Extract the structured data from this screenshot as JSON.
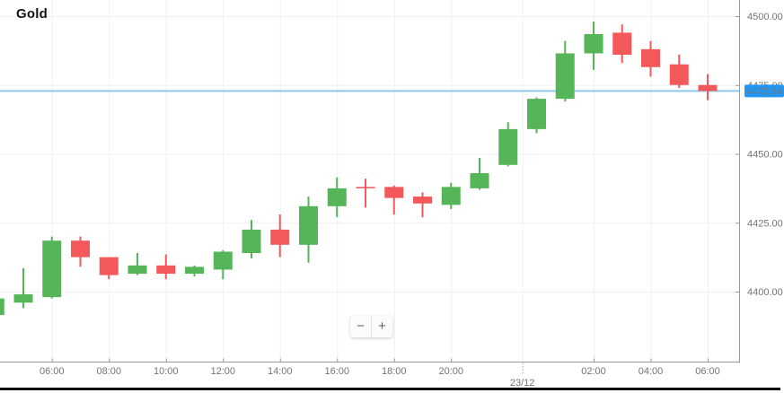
{
  "title": "Gold",
  "controls": {
    "zoom_out": "−",
    "zoom_in": "+"
  },
  "colors": {
    "up": "#55b558",
    "down": "#f3585a",
    "wick_up": "#55b558",
    "wick_down": "#f3585a",
    "price_line": "#8fc7ef",
    "price_badge": "#2196f3",
    "grid": "#f0f0f1",
    "axis": "#999999",
    "label": "#757575"
  },
  "chart_data": {
    "type": "candlestick",
    "title": "Gold",
    "current_price": 4472.84,
    "current_price_label": "4472.84",
    "legend_position": "none",
    "grid": true,
    "y_ticks": [
      4400,
      4425,
      4450,
      4475,
      4500
    ],
    "y_tick_labels": [
      "4400.00",
      "4425.00",
      "4450.00",
      "4475.00",
      "4500.00"
    ],
    "x_axis": {
      "ticks": [
        {
          "label": "06:00",
          "index": 2
        },
        {
          "label": "08:00",
          "index": 4
        },
        {
          "label": "10:00",
          "index": 6
        },
        {
          "label": "12:00",
          "index": 8
        },
        {
          "label": "14:00",
          "index": 10
        },
        {
          "label": "16:00",
          "index": 12
        },
        {
          "label": "18:00",
          "index": 14
        },
        {
          "label": "20:00",
          "index": 16
        },
        {
          "label": "23/12",
          "between": [
            18,
            19
          ],
          "date": true
        },
        {
          "label": "02:00",
          "index": 21
        },
        {
          "label": "04:00",
          "index": 23
        },
        {
          "label": "06:00",
          "index": 25
        }
      ]
    },
    "candles": [
      {
        "time": "04:00",
        "open": 4391.5,
        "high": 4397.5,
        "low": 4391.5,
        "close": 4397.5
      },
      {
        "time": "05:00",
        "open": 4396.0,
        "high": 4408.5,
        "low": 4394.0,
        "close": 4399.0
      },
      {
        "time": "06:00",
        "open": 4398.0,
        "high": 4420.0,
        "low": 4397.5,
        "close": 4418.5
      },
      {
        "time": "07:00",
        "open": 4418.5,
        "high": 4420.0,
        "low": 4409.0,
        "close": 4412.5
      },
      {
        "time": "08:00",
        "open": 4412.5,
        "high": 4412.5,
        "low": 4404.5,
        "close": 4406.0
      },
      {
        "time": "09:00",
        "open": 4406.5,
        "high": 4414.0,
        "low": 4406.0,
        "close": 4409.5
      },
      {
        "time": "10:00",
        "open": 4409.5,
        "high": 4413.5,
        "low": 4404.5,
        "close": 4406.5
      },
      {
        "time": "11:00",
        "open": 4406.5,
        "high": 4409.5,
        "low": 4405.5,
        "close": 4409.0
      },
      {
        "time": "12:00",
        "open": 4408.0,
        "high": 4415.0,
        "low": 4404.5,
        "close": 4414.5
      },
      {
        "time": "13:00",
        "open": 4414.0,
        "high": 4426.0,
        "low": 4412.0,
        "close": 4422.5
      },
      {
        "time": "14:00",
        "open": 4422.5,
        "high": 4428.0,
        "low": 4412.5,
        "close": 4417.0
      },
      {
        "time": "15:00",
        "open": 4417.0,
        "high": 4434.5,
        "low": 4410.5,
        "close": 4431.0
      },
      {
        "time": "16:00",
        "open": 4431.0,
        "high": 4441.5,
        "low": 4427.0,
        "close": 4437.5
      },
      {
        "time": "17:00",
        "open": 4438.0,
        "high": 4441.0,
        "low": 4430.5,
        "close": 4437.5
      },
      {
        "time": "18:00",
        "open": 4438.0,
        "high": 4438.5,
        "low": 4428.0,
        "close": 4434.0
      },
      {
        "time": "19:00",
        "open": 4434.5,
        "high": 4436.0,
        "low": 4427.0,
        "close": 4432.0
      },
      {
        "time": "20:00",
        "open": 4431.5,
        "high": 4439.5,
        "low": 4430.0,
        "close": 4438.0
      },
      {
        "time": "21:00",
        "open": 4437.5,
        "high": 4448.5,
        "low": 4437.0,
        "close": 4443.0
      },
      {
        "time": "22:00",
        "open": 4446.0,
        "high": 4461.5,
        "low": 4445.5,
        "close": 4459.0
      },
      {
        "time": "00:00",
        "open": 4459.0,
        "high": 4470.5,
        "low": 4457.5,
        "close": 4470.0
      },
      {
        "time": "01:00",
        "open": 4470.0,
        "high": 4491.0,
        "low": 4469.0,
        "close": 4486.5
      },
      {
        "time": "02:00",
        "open": 4486.5,
        "high": 4498.0,
        "low": 4480.5,
        "close": 4493.5
      },
      {
        "time": "03:00",
        "open": 4494.0,
        "high": 4497.0,
        "low": 4483.0,
        "close": 4486.0
      },
      {
        "time": "04:00",
        "open": 4488.0,
        "high": 4491.0,
        "low": 4478.0,
        "close": 4481.5
      },
      {
        "time": "05:00",
        "open": 4482.5,
        "high": 4486.0,
        "low": 4474.0,
        "close": 4475.0
      },
      {
        "time": "06:00",
        "open": 4475.0,
        "high": 4479.0,
        "low": 4469.5,
        "close": 4472.84
      }
    ]
  }
}
